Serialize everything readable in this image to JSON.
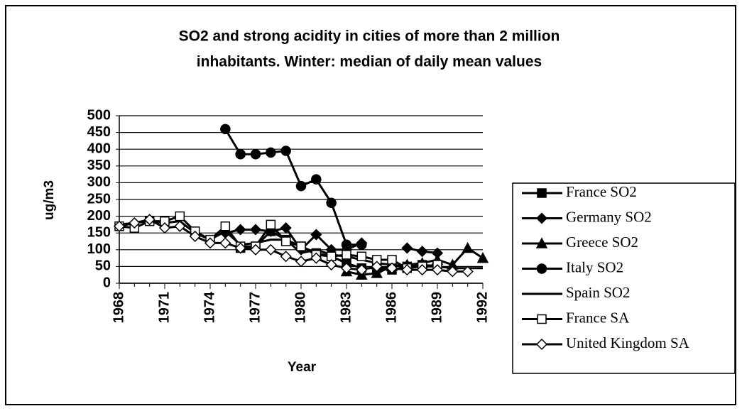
{
  "chart_data": {
    "type": "line",
    "title": [
      "SO2 and strong acidity in cities of more than 2 million",
      "inhabitants.  Winter:  median of daily mean values"
    ],
    "xlabel": "Year",
    "ylabel": "ug/m3",
    "x": [
      1968,
      1969,
      1970,
      1971,
      1972,
      1973,
      1974,
      1975,
      1976,
      1977,
      1978,
      1979,
      1980,
      1981,
      1982,
      1983,
      1984,
      1985,
      1986,
      1987,
      1988,
      1989,
      1990,
      1991,
      1992
    ],
    "xlim": [
      1968,
      1992
    ],
    "xticks": [
      1968,
      1971,
      1974,
      1977,
      1980,
      1983,
      1986,
      1989,
      1992
    ],
    "ylim": [
      0,
      500
    ],
    "yticks": [
      0,
      50,
      100,
      150,
      200,
      250,
      300,
      350,
      400,
      450,
      500
    ],
    "grid": true,
    "series": [
      {
        "name": "France SO2",
        "color": "#000000",
        "marker": "square",
        "values": [
          null,
          null,
          null,
          null,
          null,
          null,
          null,
          null,
          105,
          110,
          155,
          130,
          110,
          90,
          80,
          60,
          45,
          45,
          40,
          50,
          55,
          50,
          null,
          null,
          null
        ]
      },
      {
        "name": "Germany SO2",
        "color": "#000000",
        "marker": "diamond",
        "values": [
          null,
          null,
          null,
          null,
          null,
          null,
          null,
          150,
          160,
          160,
          155,
          165,
          100,
          145,
          100,
          100,
          120,
          null,
          null,
          105,
          95,
          90,
          null,
          null,
          null
        ]
      },
      {
        "name": "Greece SO2",
        "color": "#000000",
        "marker": "triangle",
        "values": [
          null,
          null,
          null,
          null,
          null,
          null,
          null,
          null,
          null,
          null,
          null,
          null,
          null,
          null,
          null,
          35,
          25,
          30,
          50,
          55,
          60,
          70,
          55,
          105,
          75
        ]
      },
      {
        "name": "Italy SO2",
        "color": "#000000",
        "marker": "circle",
        "values": [
          null,
          null,
          null,
          null,
          null,
          null,
          null,
          460,
          385,
          385,
          390,
          395,
          290,
          310,
          240,
          115,
          115,
          null,
          null,
          null,
          null,
          null,
          null,
          null,
          null
        ]
      },
      {
        "name": "Spain SO2",
        "color": "#000000",
        "marker": "none",
        "values": [
          175,
          180,
          185,
          180,
          185,
          150,
          130,
          155,
          115,
          120,
          130,
          130,
          90,
          100,
          85,
          80,
          70,
          60,
          55,
          50,
          50,
          50,
          45,
          45,
          45
        ]
      },
      {
        "name": "France SA",
        "color": "#000000",
        "marker": "square-open",
        "values": [
          170,
          165,
          185,
          185,
          200,
          155,
          130,
          170,
          110,
          110,
          175,
          125,
          110,
          85,
          80,
          85,
          80,
          70,
          70,
          45,
          50,
          55,
          null,
          null,
          null
        ]
      },
      {
        "name": "United Kingdom  SA",
        "color": "#000000",
        "marker": "diamond-open",
        "values": [
          170,
          180,
          190,
          165,
          170,
          140,
          120,
          120,
          105,
          100,
          100,
          80,
          65,
          75,
          55,
          45,
          40,
          50,
          45,
          40,
          40,
          40,
          35,
          35,
          null
        ]
      }
    ]
  }
}
